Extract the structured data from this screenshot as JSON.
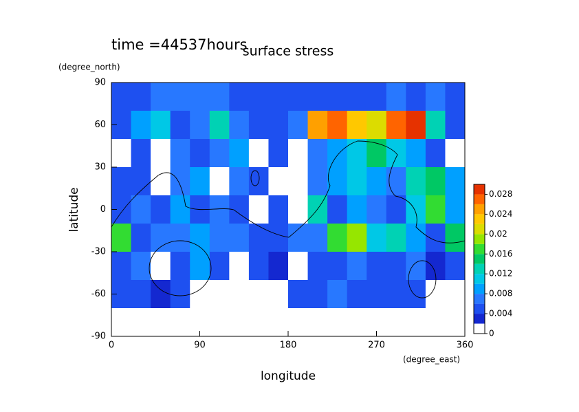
{
  "chart_data": {
    "type": "heatmap",
    "title": "surface stress",
    "subtitle": "time =44537hours",
    "x_label": "longitude",
    "x_units": "(degree_east)",
    "y_label": "latitude",
    "y_units": "(degree_north)",
    "x": [
      10,
      30,
      50,
      70,
      90,
      110,
      130,
      150,
      170,
      190,
      210,
      230,
      250,
      270,
      290,
      310,
      330,
      350
    ],
    "y": [
      80,
      60,
      40,
      20,
      0,
      -20,
      -40,
      -60,
      -80
    ],
    "z": [
      [
        0.005,
        0.005,
        0.006,
        0.006,
        0.007,
        0.006,
        0.005,
        0.004,
        0.005,
        0.004,
        0.005,
        0.004,
        0.005,
        0.005,
        0.006,
        0.005,
        0.006,
        0.005
      ],
      [
        0.004,
        0.008,
        0.01,
        0.005,
        0.006,
        0.012,
        0.006,
        0.005,
        0.004,
        0.006,
        0.024,
        0.026,
        0.022,
        0.02,
        0.026,
        0.028,
        0.012,
        0.005
      ],
      [
        0.001,
        0.005,
        0.001,
        0.006,
        0.004,
        0.007,
        0.008,
        0.001,
        0.005,
        0.001,
        0.006,
        0.008,
        0.01,
        0.014,
        0.011,
        0.008,
        0.005,
        0.001
      ],
      [
        0.005,
        0.004,
        0.001,
        0.006,
        0.008,
        0.001,
        0.006,
        0.005,
        0.001,
        0.001,
        0.006,
        0.009,
        0.01,
        0.008,
        0.006,
        0.012,
        0.014,
        0.008
      ],
      [
        0.004,
        0.006,
        0.005,
        0.008,
        0.005,
        0.006,
        0.004,
        0.001,
        0.005,
        0.001,
        0.012,
        0.005,
        0.008,
        0.006,
        0.005,
        0.01,
        0.016,
        0.008
      ],
      [
        0.016,
        0.005,
        0.006,
        0.006,
        0.008,
        0.007,
        0.006,
        0.004,
        0.005,
        0.006,
        0.006,
        0.016,
        0.018,
        0.01,
        0.012,
        0.008,
        0.005,
        0.014
      ],
      [
        0.005,
        0.006,
        0.001,
        0.004,
        0.008,
        0.004,
        0.001,
        0.004,
        0.003,
        0.001,
        0.004,
        0.005,
        0.006,
        0.005,
        0.004,
        0.006,
        0.003,
        0.004
      ],
      [
        0.004,
        0.004,
        0.003,
        0.004,
        0.001,
        0.001,
        0.001,
        0.001,
        0.001,
        0.004,
        0.005,
        0.006,
        0.005,
        0.004,
        0.004,
        0.005,
        0.001,
        0.001
      ],
      [
        0,
        0,
        0,
        0,
        0,
        0,
        0,
        0,
        0,
        0,
        0,
        0,
        0,
        0,
        0,
        0,
        0,
        0
      ]
    ],
    "xlim": [
      0,
      360
    ],
    "xticks": [
      0,
      90,
      180,
      270,
      360
    ],
    "ylim": [
      -90,
      90
    ],
    "yticks": [
      -90,
      -60,
      -30,
      0,
      30,
      60,
      90
    ],
    "levels": [
      0,
      0.002,
      0.004,
      0.006,
      0.008,
      0.01,
      0.012,
      0.014,
      0.016,
      0.018,
      0.02,
      0.022,
      0.024,
      0.026,
      0.028,
      0.03
    ],
    "colors": [
      "#ffffff",
      "#1428d0",
      "#1e50f0",
      "#2878ff",
      "#00a0ff",
      "#00c8e6",
      "#00d2b4",
      "#00c864",
      "#32dc32",
      "#96e600",
      "#dcdc00",
      "#ffc800",
      "#ffa000",
      "#ff6400",
      "#e63200"
    ],
    "colorbar_ticks": [
      0,
      0.004,
      0.008,
      0.012,
      0.016,
      0.02,
      0.024,
      0.028
    ]
  }
}
